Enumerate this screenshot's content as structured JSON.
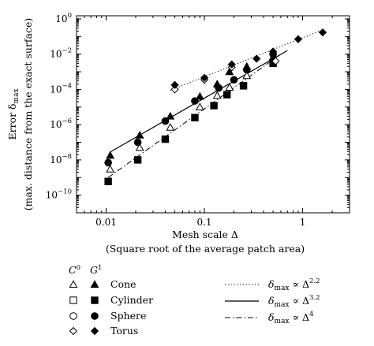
{
  "chart_data": {
    "type": "scatter",
    "title": "",
    "xlabel_line1": "Mesh scale Δ",
    "xlabel_line2": "(Square root of the average patch area)",
    "ylabel_line1": "Error δ",
    "ylabel_sub": "max",
    "ylabel_line2": "(max. distance from the exact surface)",
    "x_scale": "log",
    "y_scale": "log",
    "xlim": [
      0.005,
      3.0
    ],
    "ylim": [
      1e-11,
      1.5
    ],
    "x_ticks": [
      0.01,
      0.1,
      1
    ],
    "x_tick_labels": [
      "0.01",
      "0.1",
      "1"
    ],
    "y_ticks": [
      1e-10,
      1e-08,
      1e-06,
      0.0001,
      0.01,
      1
    ],
    "y_tick_labels": [
      {
        "base": "10",
        "exp": "−10"
      },
      {
        "base": "10",
        "exp": "−8"
      },
      {
        "base": "10",
        "exp": "−6"
      },
      {
        "base": "10",
        "exp": "−4"
      },
      {
        "base": "10",
        "exp": "−2"
      },
      {
        "base": "10",
        "exp": "0"
      }
    ],
    "grid": false,
    "legend": {
      "placement": "below",
      "col_c0": {
        "base": "C",
        "sup": "0"
      },
      "col_g1": {
        "base": "G",
        "sup": "1"
      }
    },
    "series": [
      {
        "name": "Cone",
        "marker": "triangle",
        "continuity": "C0",
        "x": [
          0.011,
          0.022,
          0.045,
          0.09,
          0.135,
          0.18,
          0.27
        ],
        "y": [
          3e-09,
          5e-08,
          7e-07,
          1e-05,
          4.5e-05,
          0.00013,
          0.0006
        ]
      },
      {
        "name": "Cone",
        "marker": "triangle",
        "continuity": "G1",
        "x": [
          0.011,
          0.022,
          0.045,
          0.09,
          0.135,
          0.18,
          0.27,
          0.5
        ],
        "y": [
          1.8e-08,
          2.5e-07,
          3e-06,
          4e-05,
          0.0002,
          0.001,
          0.002,
          0.007
        ]
      },
      {
        "name": "Cylinder",
        "marker": "square",
        "continuity": "C0",
        "x": [],
        "y": []
      },
      {
        "name": "Cylinder",
        "marker": "square",
        "continuity": "G1",
        "x": [
          0.0105,
          0.021,
          0.04,
          0.08,
          0.125,
          0.17,
          0.25,
          0.5
        ],
        "y": [
          6e-10,
          1e-08,
          1.5e-07,
          2.5e-06,
          1.2e-05,
          5e-05,
          0.00016,
          0.003
        ]
      },
      {
        "name": "Sphere",
        "marker": "circle",
        "continuity": "C0",
        "x": [],
        "y": []
      },
      {
        "name": "Sphere",
        "marker": "circle",
        "continuity": "G1",
        "x": [
          0.0105,
          0.021,
          0.04,
          0.08,
          0.14,
          0.2,
          0.27,
          0.5
        ],
        "y": [
          7e-09,
          1e-07,
          1.6e-06,
          2.2e-05,
          0.00012,
          0.00035,
          0.0013,
          0.01
        ]
      },
      {
        "name": "Torus",
        "marker": "diamond",
        "continuity": "C0",
        "x": [
          0.05,
          0.1,
          0.19,
          0.53
        ],
        "y": [
          0.0001,
          0.00035,
          0.0018,
          0.004
        ]
      },
      {
        "name": "Torus",
        "marker": "diamond",
        "continuity": "G1",
        "x": [
          0.05,
          0.1,
          0.19,
          0.34,
          0.5,
          0.9,
          1.6
        ],
        "y": [
          0.00018,
          0.00045,
          0.0026,
          0.0055,
          0.014,
          0.07,
          0.17
        ]
      }
    ],
    "fit_lines": [
      {
        "style": "dotted",
        "label_base": "δ",
        "label_sub": "max",
        "label_rel": "∝ Δ",
        "exponent": "2.2",
        "x": [
          0.045,
          1.6
        ],
        "y": [
          9e-05,
          0.24
        ]
      },
      {
        "style": "solid",
        "label_base": "δ",
        "label_sub": "max",
        "label_rel": "∝ Δ",
        "exponent": "3.2",
        "x": [
          0.011,
          0.7
        ],
        "y": [
          2.8e-08,
          0.016
        ]
      },
      {
        "style": "dashdot",
        "label_base": "δ",
        "label_sub": "max",
        "label_rel": "∝ Δ",
        "exponent": "4",
        "x": [
          0.0105,
          0.6
        ],
        "y": [
          1e-09,
          0.01
        ]
      }
    ]
  }
}
